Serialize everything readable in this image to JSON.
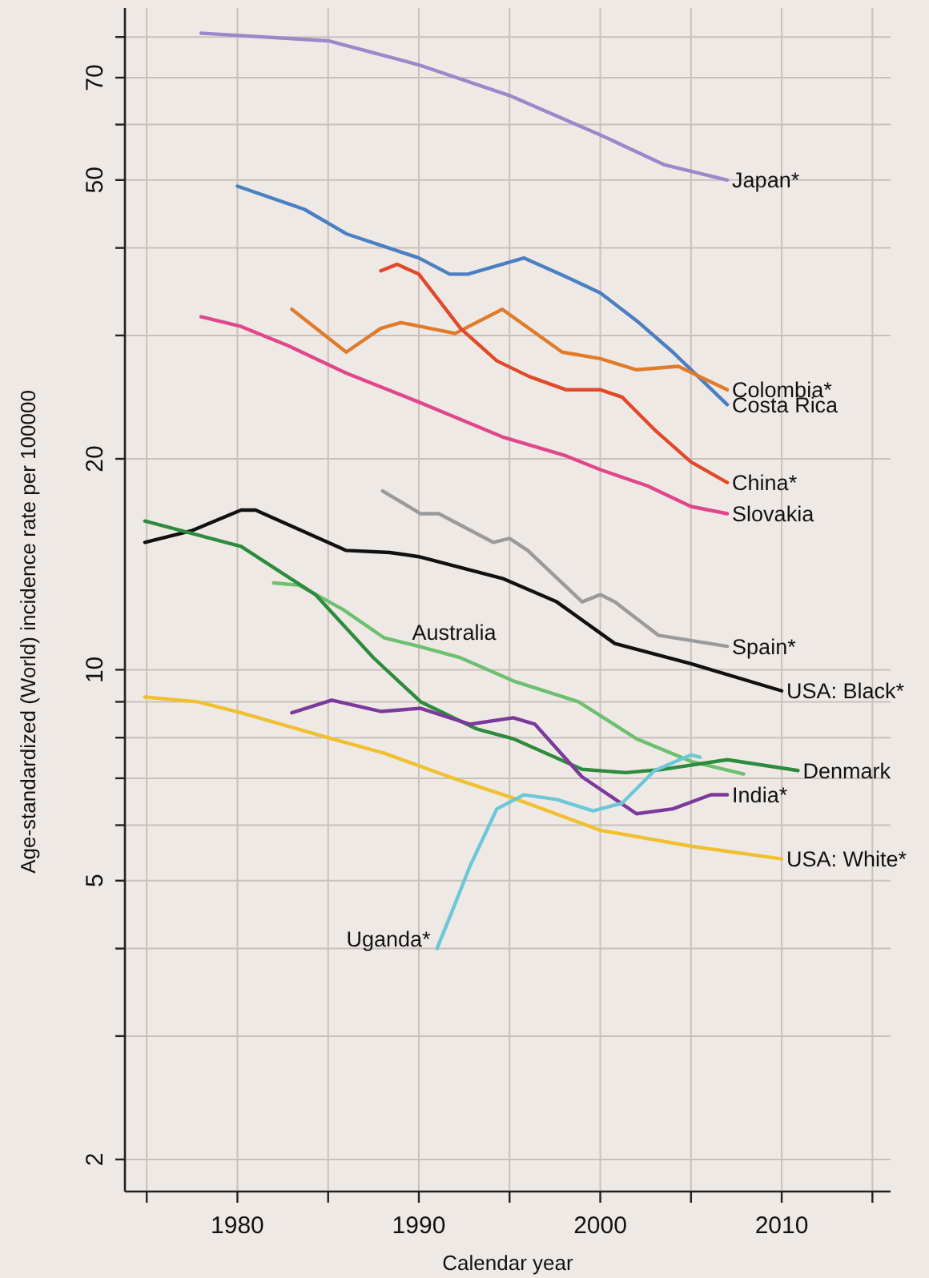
{
  "chart_data": {
    "type": "line",
    "xlabel": "Calendar year",
    "ylabel": "Age-standardized (World) incidence rate per 100000",
    "log": "y",
    "grid": true,
    "line_style": "solid",
    "marker": "none",
    "xlim": [
      1973.8,
      2016
    ],
    "ylim": [
      1.8,
      88
    ],
    "xticks": [
      {
        "value": 1975,
        "label": null
      },
      1980,
      {
        "value": 1985,
        "label": null
      },
      1990,
      {
        "value": 1995,
        "label": null
      },
      2000,
      {
        "value": 2005,
        "label": null
      },
      2010,
      {
        "value": 2015,
        "label": null
      }
    ],
    "yticks": [
      2,
      {
        "value": 3,
        "label": null
      },
      {
        "value": 4,
        "label": null
      },
      5,
      {
        "value": 6,
        "label": null
      },
      {
        "value": 7,
        "label": null
      },
      {
        "value": 8,
        "label": null
      },
      {
        "value": 9,
        "label": null
      },
      10,
      20,
      {
        "value": 30,
        "label": null
      },
      {
        "value": 40,
        "label": null
      },
      50,
      {
        "value": 60,
        "label": null
      },
      70,
      {
        "value": 80,
        "label": null
      }
    ],
    "series": [
      {
        "name": "Japan*",
        "color": "#9b87c9",
        "x": [
          1978,
          1985,
          1990,
          1995,
          2000,
          2003.5,
          2007
        ],
        "values": [
          81,
          79,
          73,
          66,
          58,
          52.6,
          50
        ]
      },
      {
        "name": "Costa Rica",
        "color": "#4a7fc1",
        "x": [
          1980,
          1983.7,
          1986,
          1990,
          1991.7,
          1992.7,
          1995.8,
          1998.1,
          2000,
          2002,
          2004,
          2007
        ],
        "values": [
          49,
          45.4,
          41.9,
          38.7,
          36.7,
          36.7,
          38.7,
          36.4,
          34.5,
          31.5,
          28.4,
          23.9
        ]
      },
      {
        "name": "Colombia*",
        "color": "#e07b2a",
        "x": [
          1983,
          1986,
          1987.9,
          1989,
          1992,
          1994.6,
          1997.9,
          2000,
          2002,
          2004.3,
          2007
        ],
        "values": [
          32.7,
          28.4,
          30.7,
          31.3,
          30.2,
          32.7,
          28.4,
          27.8,
          26.8,
          27.1,
          25.1
        ]
      },
      {
        "name": "China*",
        "color": "#e04a2a",
        "x": [
          1987.9,
          1988.8,
          1990,
          1992.3,
          1994.3,
          1996.1,
          1998.1,
          2000,
          2001.2,
          2003,
          2005,
          2007
        ],
        "values": [
          37.1,
          37.9,
          36.7,
          30.7,
          27.6,
          26.2,
          25.1,
          25.1,
          24.5,
          22,
          19.8,
          18.5
        ]
      },
      {
        "name": "Slovakia",
        "color": "#e0468a",
        "x": [
          1978,
          1980.2,
          1982.8,
          1986,
          1990,
          1994.6,
          1998.1,
          2000,
          2002.6,
          2005,
          2007
        ],
        "values": [
          31.9,
          30.9,
          29,
          26.5,
          24.1,
          21.5,
          20.2,
          19.3,
          18.3,
          17.1,
          16.7
        ]
      },
      {
        "name": "Spain*",
        "color": "#9a9a9a",
        "x": [
          1988,
          1990.1,
          1991.1,
          1994.1,
          1995,
          1996,
          1999,
          2000,
          2000.8,
          2003.2,
          2007
        ],
        "values": [
          18,
          16.7,
          16.7,
          15.2,
          15.4,
          14.8,
          12.5,
          12.8,
          12.5,
          11.2,
          10.8
        ]
      },
      {
        "name": "USA: Black*",
        "color": "#111111",
        "x": [
          1974.9,
          1977.5,
          1980.2,
          1981,
          1986,
          1988.4,
          1990,
          1994.6,
          1997.6,
          2000.8,
          2005,
          2010
        ],
        "values": [
          15.2,
          15.8,
          16.9,
          16.9,
          14.8,
          14.7,
          14.5,
          13.5,
          12.5,
          10.9,
          10.2,
          9.33
        ]
      },
      {
        "name": "Australia",
        "color": "#6cc070",
        "x": [
          1982,
          1983.4,
          1985.8,
          1988.1,
          1990,
          1992.3,
          1995.2,
          1998.8,
          2002,
          2005,
          2007.9
        ],
        "values": [
          13.3,
          13.2,
          12.2,
          11.1,
          10.8,
          10.4,
          9.64,
          9,
          7.97,
          7.4,
          7.1
        ]
      },
      {
        "name": "Denmark",
        "color": "#2e8b3e",
        "x": [
          1974.9,
          1980.2,
          1984.3,
          1987.5,
          1990.1,
          1993.2,
          1995.2,
          1999,
          2001.4,
          2003.5,
          2007,
          2010.9
        ],
        "values": [
          16.3,
          15,
          12.8,
          10.4,
          9,
          8.23,
          7.97,
          7.21,
          7.13,
          7.21,
          7.44,
          7.18
        ]
      },
      {
        "name": "India*",
        "color": "#7b3a9b",
        "x": [
          1983,
          1985.2,
          1987.9,
          1990.1,
          1992.8,
          1995.2,
          1996.4,
          1999,
          2002,
          2004,
          2006.1,
          2007
        ],
        "values": [
          8.68,
          9.05,
          8.72,
          8.81,
          8.36,
          8.54,
          8.36,
          7.03,
          6.23,
          6.33,
          6.63,
          6.63
        ]
      },
      {
        "name": "USA: White*",
        "color": "#f0c030",
        "x": [
          1974.9,
          1977.8,
          1980.2,
          1984.9,
          1988.1,
          1991.7,
          1995.2,
          2000,
          2005,
          2010
        ],
        "values": [
          9.14,
          9,
          8.68,
          8.01,
          7.6,
          7.03,
          6.56,
          5.9,
          5.6,
          5.37
        ]
      },
      {
        "name": "Uganda*",
        "color": "#6cc8d8",
        "x": [
          1991,
          1991.8,
          1992.8,
          1994.3,
          1995.8,
          1997.6,
          1999.6,
          2001.2,
          2003,
          2005,
          2005.5
        ],
        "values": [
          4,
          4.5,
          5.23,
          6.33,
          6.63,
          6.53,
          6.29,
          6.45,
          7.18,
          7.56,
          7.5
        ]
      }
    ]
  }
}
